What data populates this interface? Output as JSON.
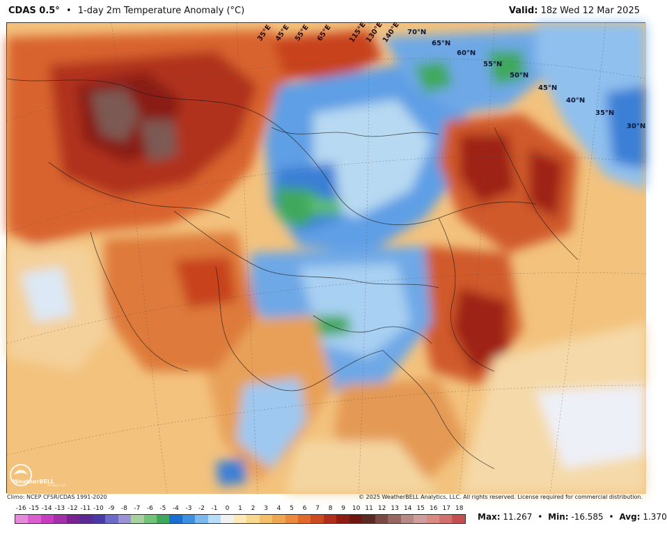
{
  "header": {
    "model": "CDAS 0.5°",
    "separator": "•",
    "product": "1-day 2m Temperature Anomaly (°C)",
    "valid_label": "Valid:",
    "valid_time": "18z Wed 12 Mar 2025"
  },
  "map": {
    "lat_labels": [
      "70°N",
      "65°N",
      "60°N",
      "55°N",
      "50°N",
      "45°N",
      "40°N",
      "35°N",
      "30°N"
    ],
    "lon_labels": [
      "35°E",
      "45°E",
      "55°E",
      "65°E",
      "115°E",
      "130°E",
      "140°E"
    ],
    "logo_text": "WeatherBELL",
    "logo_sub": "Analytics LLC"
  },
  "footer": {
    "climo": "Climo: NCEP CFSR/CDAS 1991-2020",
    "copyright": "© 2025 WeatherBELL Analytics, LLC. All rights reserved. License required for commercial distribution."
  },
  "colorbar": {
    "ticks": [
      "-16",
      "-15",
      "-14",
      "-13",
      "-12",
      "-11",
      "-10",
      "-9",
      "-8",
      "-7",
      "-6",
      "-5",
      "-4",
      "-3",
      "-2",
      "-1",
      "0",
      "1",
      "2",
      "3",
      "4",
      "5",
      "6",
      "7",
      "8",
      "9",
      "10",
      "11",
      "12",
      "13",
      "14",
      "15",
      "16",
      "17",
      "18"
    ],
    "colors": [
      "#e58ad8",
      "#d95fcf",
      "#c83cc1",
      "#a02fa8",
      "#7a2390",
      "#5a2b95",
      "#4a3aa8",
      "#6d6ac8",
      "#9a94d6",
      "#a7d2a0",
      "#72c279",
      "#3fa85c",
      "#1b6fd0",
      "#3f8fe0",
      "#7bb8ee",
      "#b9dcf7",
      "#f1f1f1",
      "#fde9b8",
      "#f8d88f",
      "#f3c069",
      "#eea650",
      "#e98a3c",
      "#e06a2c",
      "#cc4a22",
      "#b02f1a",
      "#8f1c12",
      "#6e1712",
      "#5b2a22",
      "#7a4a42",
      "#96675f",
      "#b58a84",
      "#cf9e9a",
      "#d98a84",
      "#d06f6c",
      "#c25052"
    ]
  },
  "stats": {
    "max_label": "Max:",
    "max_value": "11.267",
    "min_label": "Min:",
    "min_value": "-16.585",
    "avg_label": "Avg:",
    "avg_value": "1.370",
    "separator": "•"
  }
}
